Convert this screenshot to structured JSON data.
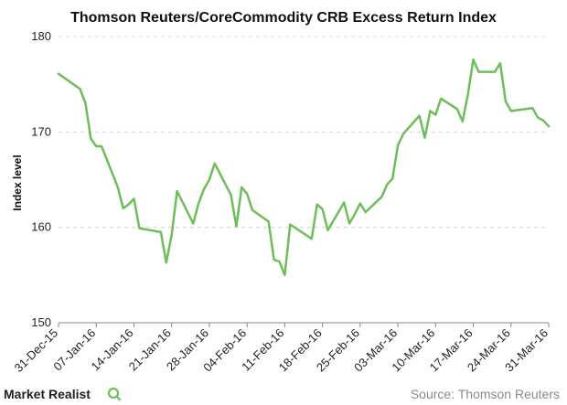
{
  "branding": {
    "logo_text": "Market Realist",
    "logo_icon": "magnifier-q-icon",
    "source": "Source: Thomson Reuters"
  },
  "colors": {
    "line": "#6dbe5b",
    "grid": "#d6d6d6",
    "axis": "#888888"
  },
  "chart_data": {
    "type": "line",
    "title": "Thomson Reuters/CoreCommodity CRB Excess Return Index",
    "xlabel": "",
    "ylabel": "Index level",
    "ylim": [
      150,
      180
    ],
    "yticks": [
      150,
      160,
      170,
      180
    ],
    "grid": true,
    "categories": [
      "31-Dec-15",
      "07-Jan-16",
      "14-Jan-16",
      "21-Jan-16",
      "28-Jan-16",
      "04-Feb-16",
      "11-Feb-16",
      "18-Feb-16",
      "25-Feb-16",
      "03-Mar-16",
      "10-Mar-16",
      "17-Mar-16",
      "24-Mar-16",
      "31-Mar-16"
    ],
    "series": [
      {
        "values": [
          [
            "2015-12-31",
            176.1
          ],
          [
            "2016-01-04",
            174.5
          ],
          [
            "2016-01-05",
            173.0
          ],
          [
            "2016-01-06",
            169.3
          ],
          [
            "2016-01-07",
            168.5
          ],
          [
            "2016-01-08",
            168.5
          ],
          [
            "2016-01-11",
            164.2
          ],
          [
            "2016-01-12",
            162.0
          ],
          [
            "2016-01-13",
            162.4
          ],
          [
            "2016-01-14",
            163.0
          ],
          [
            "2016-01-15",
            159.9
          ],
          [
            "2016-01-19",
            159.5
          ],
          [
            "2016-01-20",
            156.3
          ],
          [
            "2016-01-21",
            159.2
          ],
          [
            "2016-01-22",
            163.8
          ],
          [
            "2016-01-25",
            160.4
          ],
          [
            "2016-01-26",
            162.5
          ],
          [
            "2016-01-27",
            164.0
          ],
          [
            "2016-01-28",
            165.0
          ],
          [
            "2016-01-29",
            166.7
          ],
          [
            "2016-02-01",
            163.4
          ],
          [
            "2016-02-02",
            160.1
          ],
          [
            "2016-02-03",
            164.2
          ],
          [
            "2016-02-04",
            163.5
          ],
          [
            "2016-02-05",
            161.8
          ],
          [
            "2016-02-08",
            160.6
          ],
          [
            "2016-02-09",
            156.6
          ],
          [
            "2016-02-10",
            156.4
          ],
          [
            "2016-02-11",
            155.0
          ],
          [
            "2016-02-12",
            160.3
          ],
          [
            "2016-02-16",
            158.8
          ],
          [
            "2016-02-17",
            162.4
          ],
          [
            "2016-02-18",
            161.9
          ],
          [
            "2016-02-19",
            159.7
          ],
          [
            "2016-02-22",
            162.6
          ],
          [
            "2016-02-23",
            160.4
          ],
          [
            "2016-02-24",
            161.4
          ],
          [
            "2016-02-25",
            162.5
          ],
          [
            "2016-02-26",
            161.6
          ],
          [
            "2016-02-29",
            163.2
          ],
          [
            "2016-03-01",
            164.5
          ],
          [
            "2016-03-02",
            165.1
          ],
          [
            "2016-03-03",
            168.6
          ],
          [
            "2016-03-04",
            169.8
          ],
          [
            "2016-03-07",
            171.7
          ],
          [
            "2016-03-08",
            169.4
          ],
          [
            "2016-03-09",
            172.2
          ],
          [
            "2016-03-10",
            171.8
          ],
          [
            "2016-03-11",
            173.5
          ],
          [
            "2016-03-14",
            172.4
          ],
          [
            "2016-03-15",
            171.1
          ],
          [
            "2016-03-16",
            173.9
          ],
          [
            "2016-03-17",
            177.6
          ],
          [
            "2016-03-18",
            176.3
          ],
          [
            "2016-03-21",
            176.3
          ],
          [
            "2016-03-22",
            177.2
          ],
          [
            "2016-03-23",
            173.2
          ],
          [
            "2016-03-24",
            172.2
          ],
          [
            "2016-03-28",
            172.5
          ],
          [
            "2016-03-29",
            171.5
          ],
          [
            "2016-03-30",
            171.2
          ],
          [
            "2016-03-31",
            170.6
          ]
        ]
      }
    ]
  }
}
